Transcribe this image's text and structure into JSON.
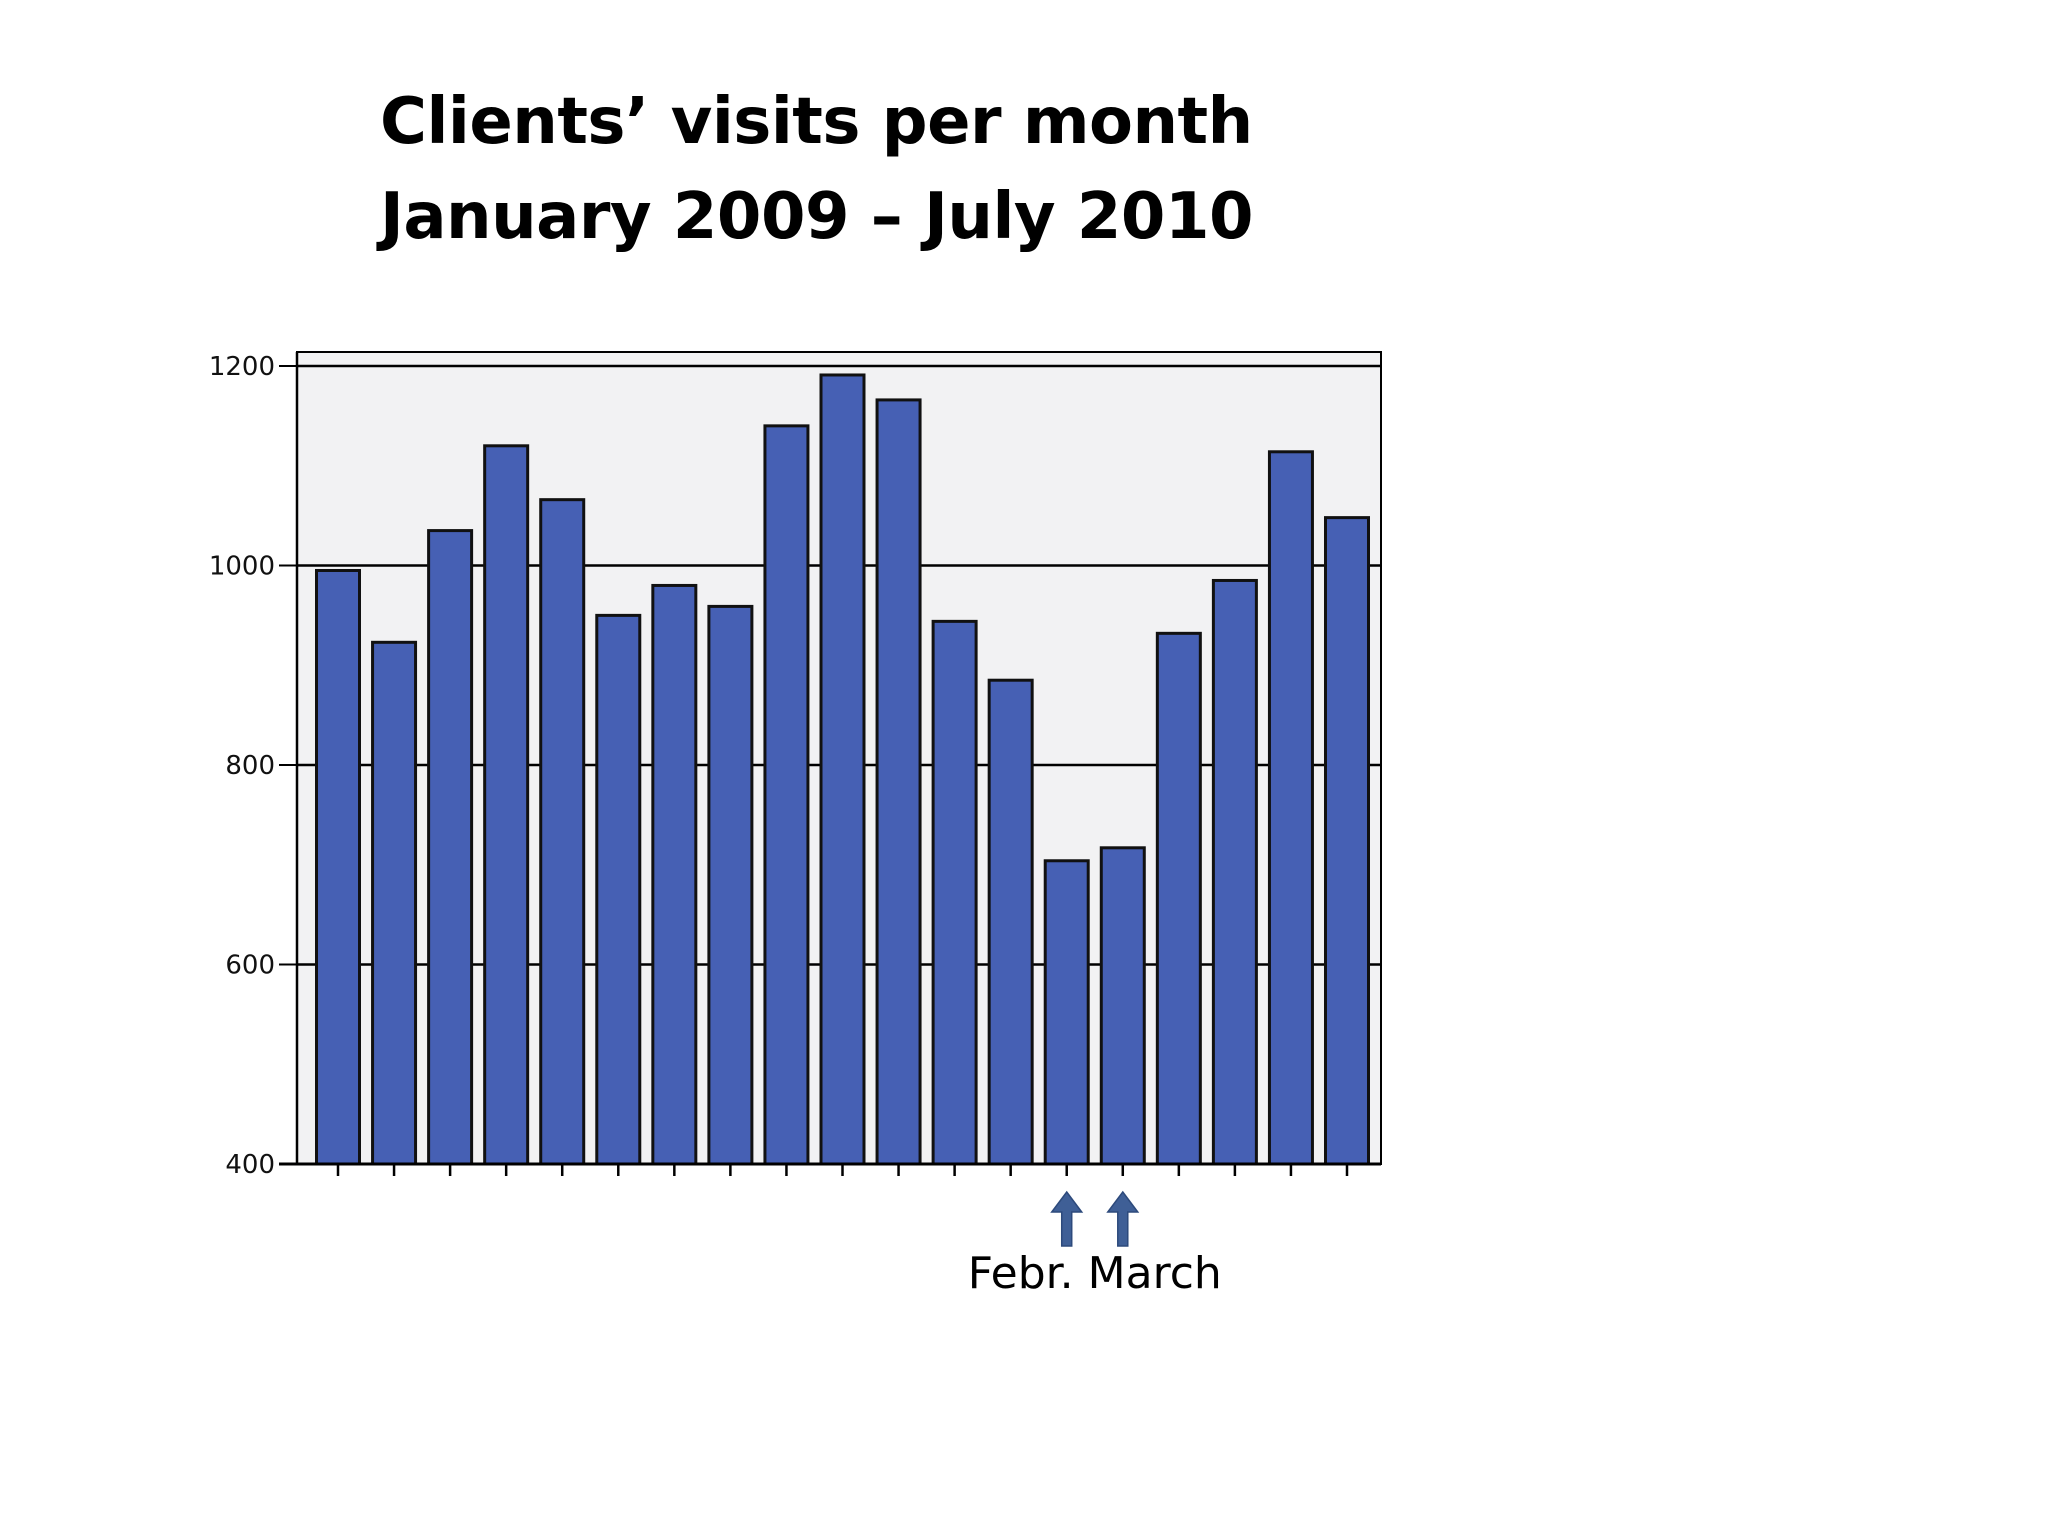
{
  "slide": {
    "title_line_1": "Clients’ visits per month",
    "title_line_2": "January 2009 – July 2010"
  },
  "chart_data": {
    "type": "bar",
    "title": "Clients’ visits per month January 2009 – July 2010",
    "xlabel": "",
    "ylabel": "",
    "ylim": [
      400,
      1200
    ],
    "yticks": [
      400,
      600,
      800,
      1000,
      1200
    ],
    "ytick_labels": [
      "400",
      "600",
      "800",
      "1000",
      "1200"
    ],
    "grid": true,
    "legend": "none",
    "values": [
      995,
      923,
      1035,
      1120,
      1066,
      950,
      980,
      959,
      1140,
      1191,
      1166,
      944,
      885,
      704,
      717,
      932,
      985,
      1114,
      1048
    ],
    "colors": {
      "bar_fill": "#4660b4",
      "bar_stroke": "#111111",
      "plot_background": "#f2f2f3",
      "arrow": "#3f5f96"
    },
    "annotations": [
      {
        "text": "Febr. March",
        "bar_indices": [
          13,
          14
        ]
      }
    ]
  }
}
